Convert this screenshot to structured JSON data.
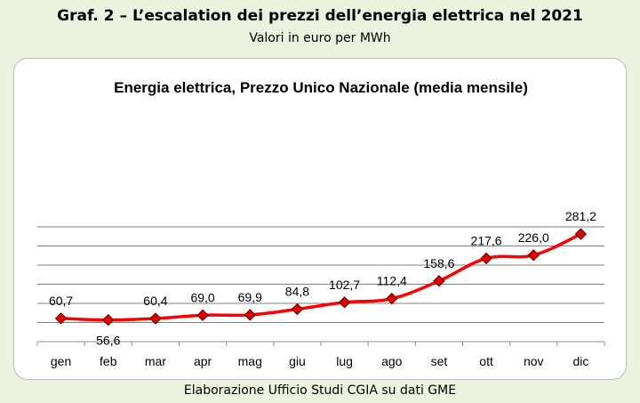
{
  "header": {
    "title": "Graf. 2 – L’escalation dei prezzi dell’energia elettrica nel 2021",
    "subtitle": "Valori in euro per MWh"
  },
  "footer": {
    "source": "Elaborazione Ufficio Studi CGIA su dati GME"
  },
  "chart_data": {
    "type": "line",
    "title": "Energia elettrica, Prezzo Unico Nazionale (media mensile)",
    "xlabel": "",
    "ylabel": "",
    "categories": [
      "gen",
      "feb",
      "mar",
      "apr",
      "mag",
      "giu",
      "lug",
      "ago",
      "set",
      "ott",
      "nov",
      "dic"
    ],
    "series": [
      {
        "values": [
          60.7,
          56.6,
          60.4,
          69.0,
          69.9,
          84.8,
          102.7,
          112.4,
          158.6,
          217.6,
          226.0,
          281.2
        ],
        "labels": [
          "60,7",
          "56,6",
          "60,4",
          "69,0",
          "69,9",
          "84,8",
          "102,7",
          "112,4",
          "158,6",
          "217,6",
          "226,0",
          "281,2"
        ],
        "color": "#ff0000",
        "marker_color": "#e00000"
      }
    ],
    "ylim": [
      0,
      300
    ],
    "grid": true,
    "gridline_color": "#7f7f7f",
    "legend": false
  }
}
